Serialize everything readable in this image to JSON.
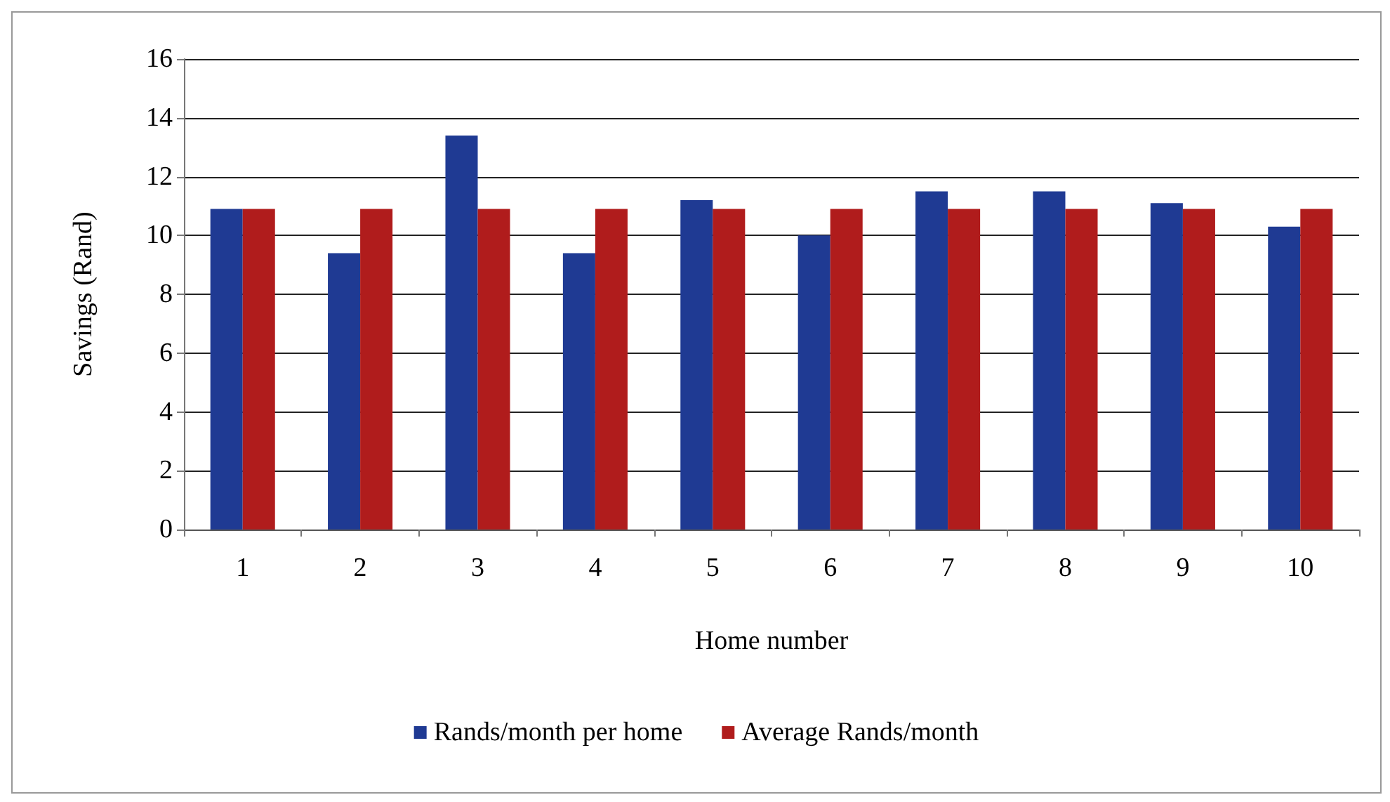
{
  "chart_data": {
    "type": "bar",
    "xlabel": "Home number",
    "ylabel": "Savings (Rand)",
    "categories": [
      "1",
      "2",
      "3",
      "4",
      "5",
      "6",
      "7",
      "8",
      "9",
      "10"
    ],
    "series": [
      {
        "name": "Rands/month per home",
        "color": "#1f3a93",
        "values": [
          10.9,
          9.4,
          13.4,
          9.4,
          11.2,
          10.0,
          11.5,
          11.5,
          11.1,
          10.3
        ]
      },
      {
        "name": "Average Rands/month",
        "color": "#b01c1c",
        "values": [
          10.9,
          10.9,
          10.9,
          10.9,
          10.9,
          10.9,
          10.9,
          10.9,
          10.9,
          10.9
        ]
      }
    ],
    "ylim": [
      0,
      16
    ],
    "yticks": [
      0,
      2,
      4,
      6,
      8,
      10,
      12,
      14,
      16
    ],
    "grid": "y",
    "legend": "bottom"
  }
}
